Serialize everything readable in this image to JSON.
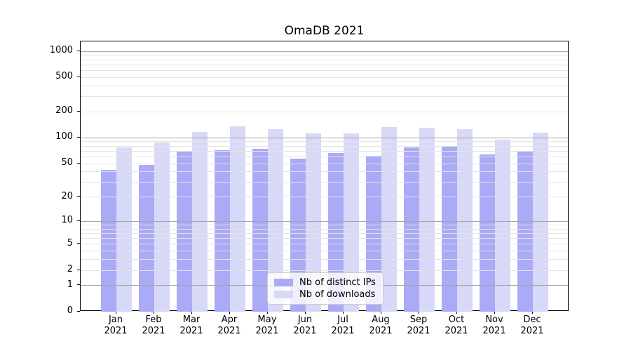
{
  "chart_data": {
    "type": "bar",
    "title": "OmaDB 2021",
    "categories": [
      "Jan 2021",
      "Feb 2021",
      "Mar 2021",
      "Apr 2021",
      "May 2021",
      "Jun 2021",
      "Jul 2021",
      "Aug 2021",
      "Sep 2021",
      "Oct 2021",
      "Nov 2021",
      "Dec 2021"
    ],
    "series": [
      {
        "name": "Nb of distinct IPs",
        "color": "#aaaaf6",
        "values": [
          42,
          48,
          69,
          72,
          74,
          57,
          67,
          62,
          78,
          79,
          64,
          71
        ]
      },
      {
        "name": "Nb of downloads",
        "color": "#d8d8f8",
        "values": [
          78,
          88,
          118,
          136,
          127,
          112,
          113,
          134,
          132,
          127,
          96,
          114
        ]
      }
    ],
    "xlabel": "",
    "ylabel": "",
    "y_axis": {
      "scale": "symlog",
      "ticks": [
        0,
        1,
        2,
        5,
        10,
        20,
        50,
        100,
        200,
        500,
        1000
      ],
      "range_max": 1280
    },
    "grid": {
      "orientation": "horizontal",
      "major_at": [
        1,
        10,
        100,
        1000
      ],
      "major_color": "#a6a6a6",
      "minor_color": "#e4e4e4"
    },
    "legend_position": "inside-bottom-center"
  }
}
